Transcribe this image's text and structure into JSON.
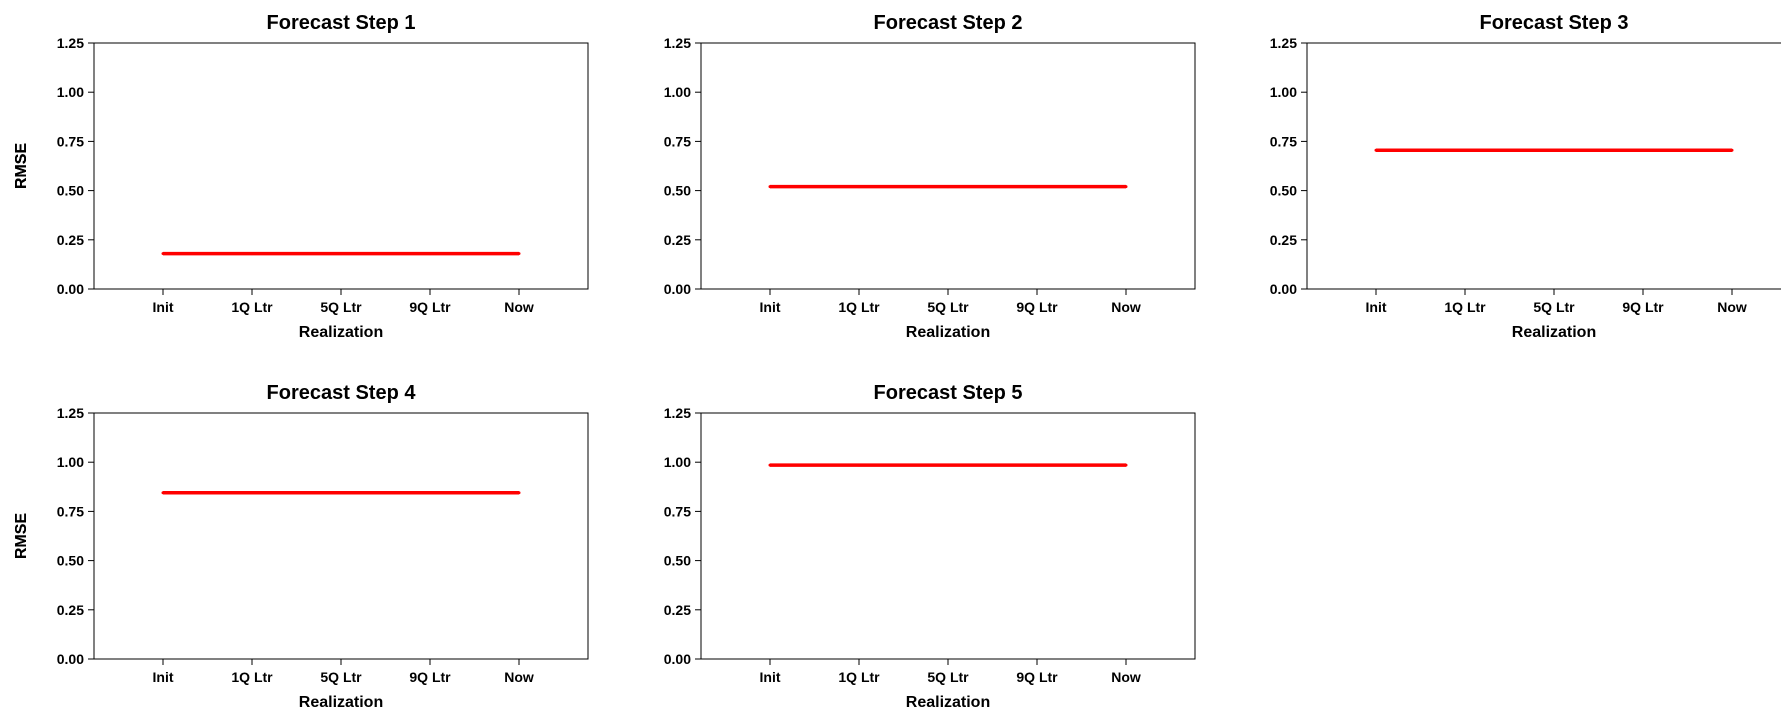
{
  "chart_data": [
    {
      "type": "line",
      "title": "Forecast Step 1",
      "xlabel": "Realization",
      "ylabel": "RMSE",
      "categories": [
        "Init",
        "1Q Ltr",
        "5Q Ltr",
        "9Q Ltr",
        "Now"
      ],
      "series": [
        {
          "values": [
            0.18,
            0.18,
            0.18,
            0.18,
            0.18
          ],
          "color": "#ff0000"
        }
      ],
      "ylim": [
        0,
        1.25
      ],
      "yticks": [
        "0.00",
        "0.25",
        "0.50",
        "0.75",
        "1.00",
        "1.25"
      ],
      "grid": false
    },
    {
      "type": "line",
      "title": "Forecast Step 2",
      "xlabel": "Realization",
      "ylabel": "RMSE",
      "categories": [
        "Init",
        "1Q Ltr",
        "5Q Ltr",
        "9Q Ltr",
        "Now"
      ],
      "series": [
        {
          "values": [
            0.52,
            0.52,
            0.52,
            0.52,
            0.52
          ],
          "color": "#ff0000"
        }
      ],
      "ylim": [
        0,
        1.25
      ],
      "yticks": [
        "0.00",
        "0.25",
        "0.50",
        "0.75",
        "1.00",
        "1.25"
      ],
      "grid": false
    },
    {
      "type": "line",
      "title": "Forecast Step 3",
      "xlabel": "Realization",
      "ylabel": "RMSE",
      "categories": [
        "Init",
        "1Q Ltr",
        "5Q Ltr",
        "9Q Ltr",
        "Now"
      ],
      "series": [
        {
          "values": [
            0.705,
            0.705,
            0.705,
            0.705,
            0.705
          ],
          "color": "#ff0000"
        }
      ],
      "ylim": [
        0,
        1.25
      ],
      "yticks": [
        "0.00",
        "0.25",
        "0.50",
        "0.75",
        "1.00",
        "1.25"
      ],
      "grid": false
    },
    {
      "type": "line",
      "title": "Forecast Step 4",
      "xlabel": "Realization",
      "ylabel": "RMSE",
      "categories": [
        "Init",
        "1Q Ltr",
        "5Q Ltr",
        "9Q Ltr",
        "Now"
      ],
      "series": [
        {
          "values": [
            0.845,
            0.845,
            0.845,
            0.845,
            0.845
          ],
          "color": "#ff0000"
        }
      ],
      "ylim": [
        0,
        1.25
      ],
      "yticks": [
        "0.00",
        "0.25",
        "0.50",
        "0.75",
        "1.00",
        "1.25"
      ],
      "grid": false
    },
    {
      "type": "line",
      "title": "Forecast Step 5",
      "xlabel": "Realization",
      "ylabel": "RMSE",
      "categories": [
        "Init",
        "1Q Ltr",
        "5Q Ltr",
        "9Q Ltr",
        "Now"
      ],
      "series": [
        {
          "values": [
            0.985,
            0.985,
            0.985,
            0.985,
            0.985
          ],
          "color": "#ff0000"
        }
      ],
      "ylim": [
        0,
        1.25
      ],
      "yticks": [
        "0.00",
        "0.25",
        "0.50",
        "0.75",
        "1.00",
        "1.25"
      ],
      "grid": false
    }
  ]
}
